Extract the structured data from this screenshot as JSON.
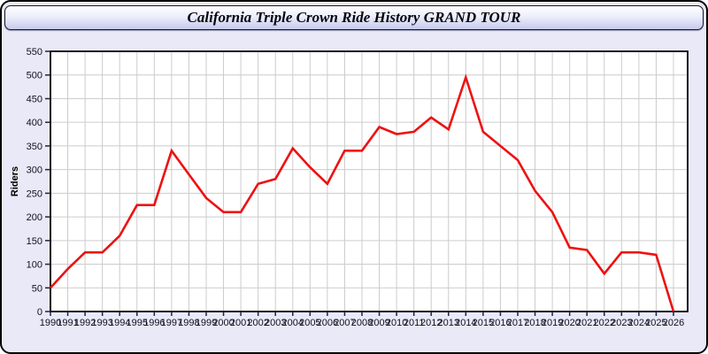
{
  "window": {
    "title": "California Triple Crown Ride History GRAND TOUR"
  },
  "chart_data": {
    "type": "line",
    "title": "California Triple Crown Ride History GRAND TOUR",
    "xlabel": "",
    "ylabel": "Riders",
    "x": [
      1990,
      1991,
      1992,
      1993,
      1994,
      1995,
      1996,
      1997,
      1998,
      1999,
      2000,
      2001,
      2002,
      2003,
      2004,
      2005,
      2006,
      2007,
      2008,
      2009,
      2010,
      2011,
      2012,
      2013,
      2014,
      2015,
      2016,
      2017,
      2018,
      2019,
      2020,
      2021,
      2022,
      2023,
      2024,
      2025,
      2026
    ],
    "series": [
      {
        "name": "Riders",
        "values": [
          50,
          90,
          125,
          125,
          160,
          225,
          225,
          340,
          290,
          240,
          210,
          210,
          270,
          280,
          345,
          305,
          270,
          340,
          340,
          390,
          375,
          380,
          410,
          385,
          495,
          380,
          350,
          320,
          255,
          210,
          135,
          130,
          80,
          125,
          125,
          120,
          0
        ]
      }
    ],
    "ylim": [
      0,
      550
    ],
    "ytick_step": 50,
    "xtick_step": 1,
    "grid": true,
    "legend": "none"
  },
  "colors": {
    "line": "#ee1111",
    "grid": "#cccccc",
    "axis": "#000000",
    "tick": "#222244",
    "tick_label": "#10101e",
    "plot_bg": "#ffffff",
    "panel_bg": "#e9e9f8"
  }
}
